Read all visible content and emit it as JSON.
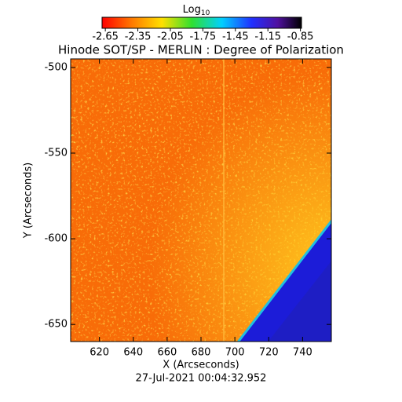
{
  "chart_data": {
    "type": "image",
    "title": "Hinode SOT/SP - MERLIN : Degree of Polarization",
    "colorbar_title": "Log",
    "colorbar_title_sub": "10",
    "colorbar_lim": [
      -2.68,
      -0.84
    ],
    "colorbar_ticks": [
      -2.65,
      -2.35,
      -2.05,
      -1.75,
      -1.45,
      -1.15,
      -0.85
    ],
    "xlabel": "X (Arcseconds)",
    "ylabel": "Y (Arcseconds)",
    "xlim": [
      603,
      757
    ],
    "ylim": [
      -660,
      -495
    ],
    "xticks": [
      620,
      640,
      660,
      680,
      700,
      720,
      740
    ],
    "yticks": [
      -500,
      -550,
      -600,
      -650
    ],
    "footer": "27-Jul-2021 00:04:32.952"
  }
}
